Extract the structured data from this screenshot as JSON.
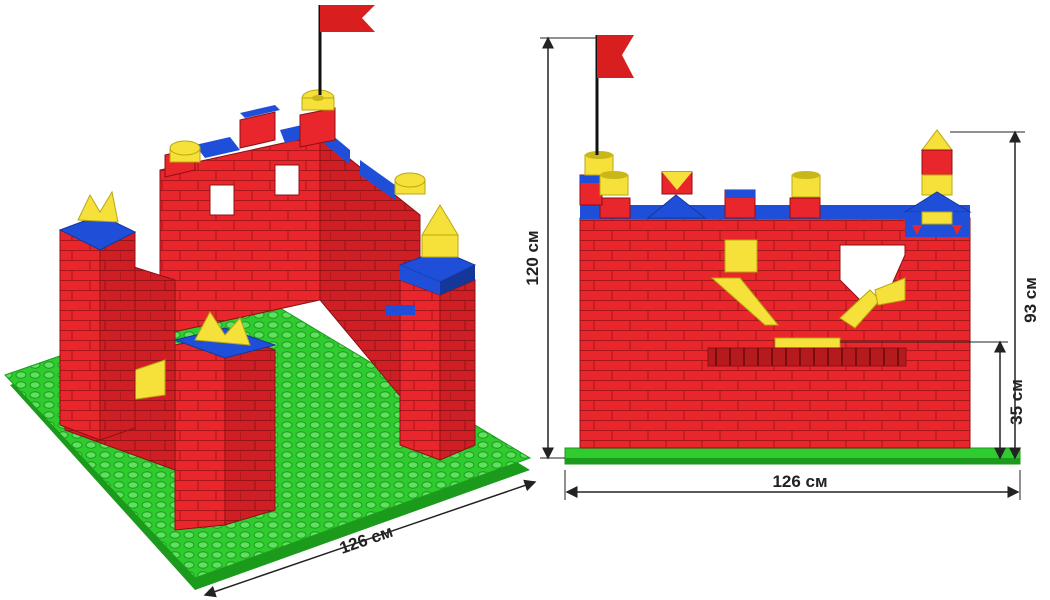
{
  "dimensions": {
    "iso_width": "126 см",
    "front_width": "126 см",
    "front_height": "120 см",
    "tower_height": "93 см",
    "gate_height": "35 см"
  },
  "colors": {
    "red": "#e8262b",
    "red_dark": "#b51a1e",
    "blue": "#1f4fd8",
    "yellow": "#f5e13a",
    "green": "#2ecc2e",
    "green_dark": "#1c9a1c",
    "flag": "#d81e1e"
  }
}
